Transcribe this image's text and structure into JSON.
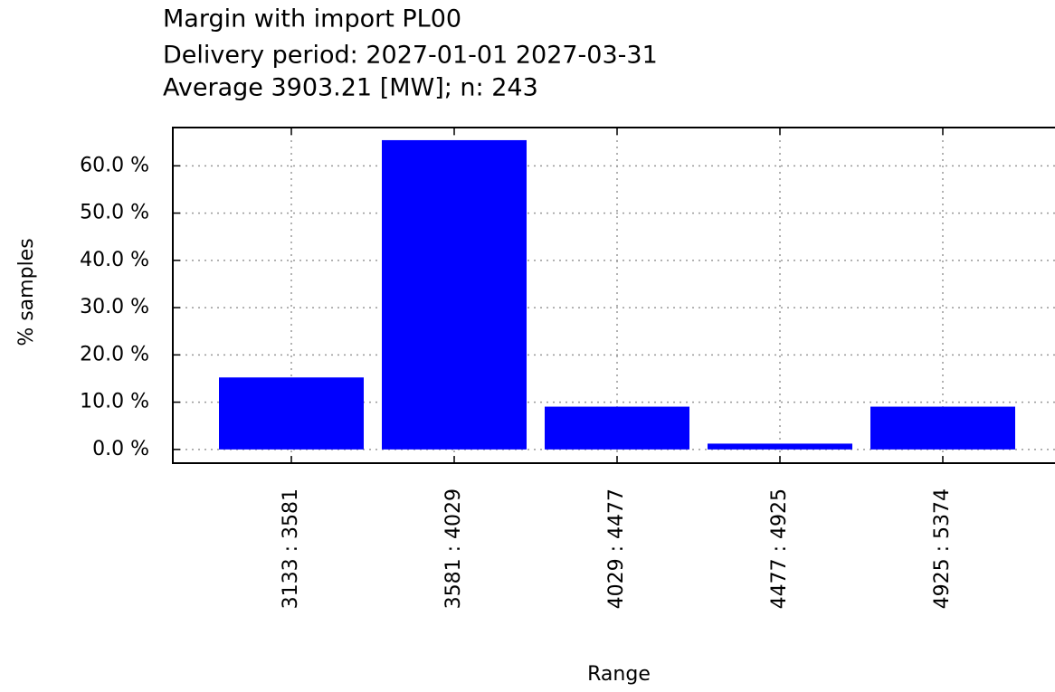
{
  "chart_data": {
    "type": "bar",
    "title_lines": [
      "Margin with import PL00",
      "Delivery period: 2027-01-01 2027-03-31",
      "Average 3903.21 [MW]; n: 243"
    ],
    "xlabel": "Range",
    "ylabel": "% samples",
    "categories": [
      "3133 : 3581",
      "3581 : 4029",
      "4029 : 4477",
      "4477 : 4925",
      "4925 : 5374"
    ],
    "values": [
      15.23,
      65.43,
      9.05,
      1.23,
      9.05
    ],
    "color": "#0000ff",
    "ylim": [
      -2.9,
      68.1
    ],
    "yticks": [
      {
        "value": 0,
        "label": "0.0 %"
      },
      {
        "value": 10,
        "label": "10.0 %"
      },
      {
        "value": 20,
        "label": "20.0 %"
      },
      {
        "value": 30,
        "label": "30.0 %"
      },
      {
        "value": 40,
        "label": "40.0 %"
      },
      {
        "value": 50,
        "label": "50.0 %"
      },
      {
        "value": 60,
        "label": "60.0 %"
      }
    ],
    "grid": true
  }
}
